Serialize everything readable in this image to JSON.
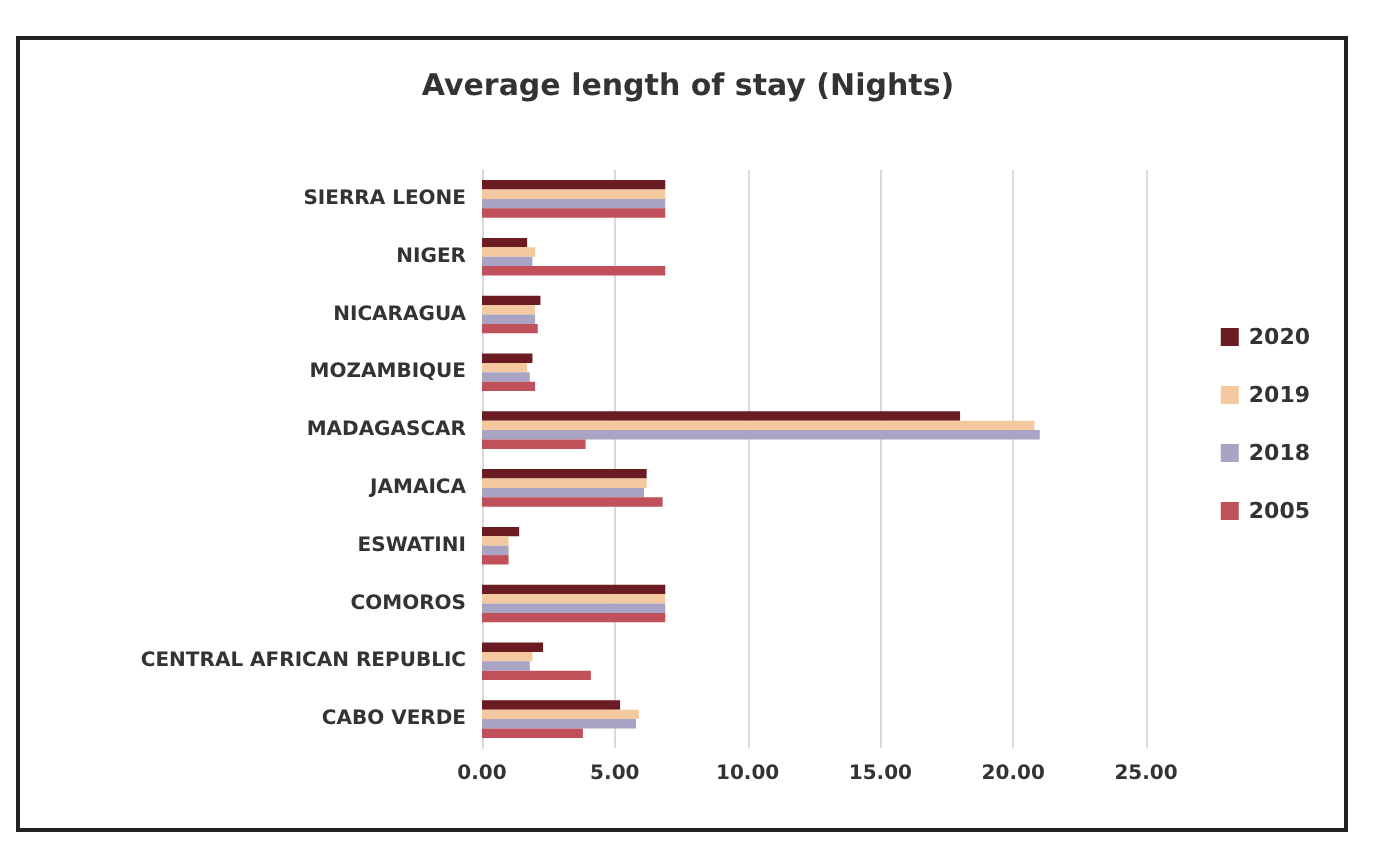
{
  "chart_data": {
    "type": "bar",
    "orientation": "horizontal",
    "title": "Average length of stay (Nights)",
    "categories": [
      "SIERRA LEONE",
      "NIGER",
      "NICARAGUA",
      "MOZAMBIQUE",
      "MADAGASCAR",
      "JAMAICA",
      "ESWATINI",
      "COMOROS",
      "CENTRAL AFRICAN REPUBLIC",
      "CABO VERDE"
    ],
    "series": [
      {
        "name": "2020",
        "color": "#6b1c22",
        "values": [
          6.9,
          1.7,
          2.2,
          1.9,
          18.0,
          6.2,
          1.4,
          6.9,
          2.3,
          5.2
        ]
      },
      {
        "name": "2019",
        "color": "#f5c9a0",
        "values": [
          6.9,
          2.0,
          2.0,
          1.7,
          20.8,
          6.2,
          1.0,
          6.9,
          1.9,
          5.9
        ]
      },
      {
        "name": "2018",
        "color": "#a9a3c4",
        "values": [
          6.9,
          1.9,
          2.0,
          1.8,
          21.0,
          6.1,
          1.0,
          6.9,
          1.8,
          5.8
        ]
      },
      {
        "name": "2005",
        "color": "#c0505a",
        "values": [
          6.9,
          6.9,
          2.1,
          2.0,
          3.9,
          6.8,
          1.0,
          6.9,
          4.1,
          3.8
        ]
      }
    ],
    "xlim": [
      0,
      25
    ],
    "xticks": [
      {
        "value": 0,
        "label": "0.00"
      },
      {
        "value": 5,
        "label": "5.00"
      },
      {
        "value": 10,
        "label": "10.00"
      },
      {
        "value": 15,
        "label": "15.00"
      },
      {
        "value": 20,
        "label": "20.00"
      },
      {
        "value": 25,
        "label": "25.00"
      }
    ],
    "grid": "x",
    "legend": "right"
  }
}
